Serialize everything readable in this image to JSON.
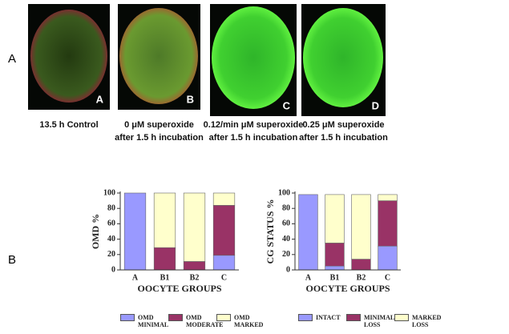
{
  "row_labels": [
    "A",
    "B"
  ],
  "panels": [
    {
      "letter": "A",
      "caption": [
        "13.5 h Control"
      ]
    },
    {
      "letter": "B",
      "caption": [
        "0 μM superoxide",
        "after 1.5 h incubation"
      ]
    },
    {
      "letter": "C",
      "caption": [
        "0.12/min μM superoxide",
        "after 1.5 h incubation"
      ]
    },
    {
      "letter": "D",
      "caption": [
        "0.25 μM superoxide",
        "after 1.5 h incubation"
      ]
    }
  ],
  "chart_data": [
    {
      "type": "stacked_bar",
      "ylabel": "OMD %",
      "xlabel": "OOCYTE GROUPS",
      "categories": [
        "A",
        "B1",
        "B2",
        "C"
      ],
      "ylim": [
        0,
        100
      ],
      "yticks": [
        0,
        20,
        40,
        60,
        80,
        100
      ],
      "series": [
        {
          "name": "OMD MINIMAL",
          "color": "#9999ff",
          "values": [
            100,
            0,
            0,
            19
          ]
        },
        {
          "name": "OMD MODERATE",
          "color": "#993366",
          "values": [
            0,
            29,
            11,
            65
          ]
        },
        {
          "name": "OMD MARKED",
          "color": "#ffffcc",
          "values": [
            0,
            71,
            89,
            16
          ]
        }
      ]
    },
    {
      "type": "stacked_bar",
      "ylabel": "CG STATUS %",
      "xlabel": "OOCYTE GROUPS",
      "categories": [
        "A",
        "B1",
        "B2",
        "C"
      ],
      "ylim": [
        0,
        100
      ],
      "yticks": [
        0,
        20,
        40,
        60,
        80,
        100
      ],
      "series": [
        {
          "name": "INTACT",
          "color": "#9999ff",
          "values": [
            98,
            5,
            0,
            31
          ]
        },
        {
          "name": "MINIMAL LOSS",
          "color": "#993366",
          "values": [
            0,
            30,
            14,
            59
          ]
        },
        {
          "name": "MARKED LOSS",
          "color": "#ffffcc",
          "values": [
            0,
            63,
            84,
            8
          ]
        }
      ]
    }
  ]
}
